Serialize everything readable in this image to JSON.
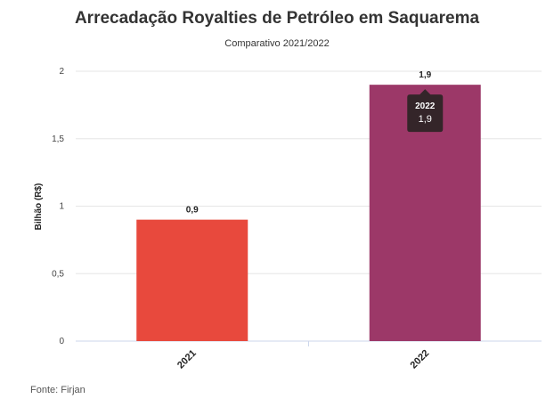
{
  "chart_data": {
    "type": "bar",
    "title": "Arrecadação Royalties de Petróleo em Saquarema",
    "subtitle": "Comparativo 2021/2022",
    "ylabel": "Bilhão (R$)",
    "xlabel": "",
    "categories": [
      "2021",
      "2022"
    ],
    "values": [
      0.9,
      1.9
    ],
    "value_labels": [
      "0,9",
      "1,9"
    ],
    "colors": [
      "#e8493d",
      "#9c3868"
    ],
    "ylim": [
      0,
      2
    ],
    "yticks": [
      0,
      0.5,
      1,
      1.5,
      2
    ],
    "ytick_labels": [
      "0",
      "0,5",
      "1",
      "1,5",
      "2"
    ],
    "grid": true,
    "tooltip": {
      "title": "2022",
      "value": "1,9"
    },
    "source": "Fonte: Firjan"
  }
}
